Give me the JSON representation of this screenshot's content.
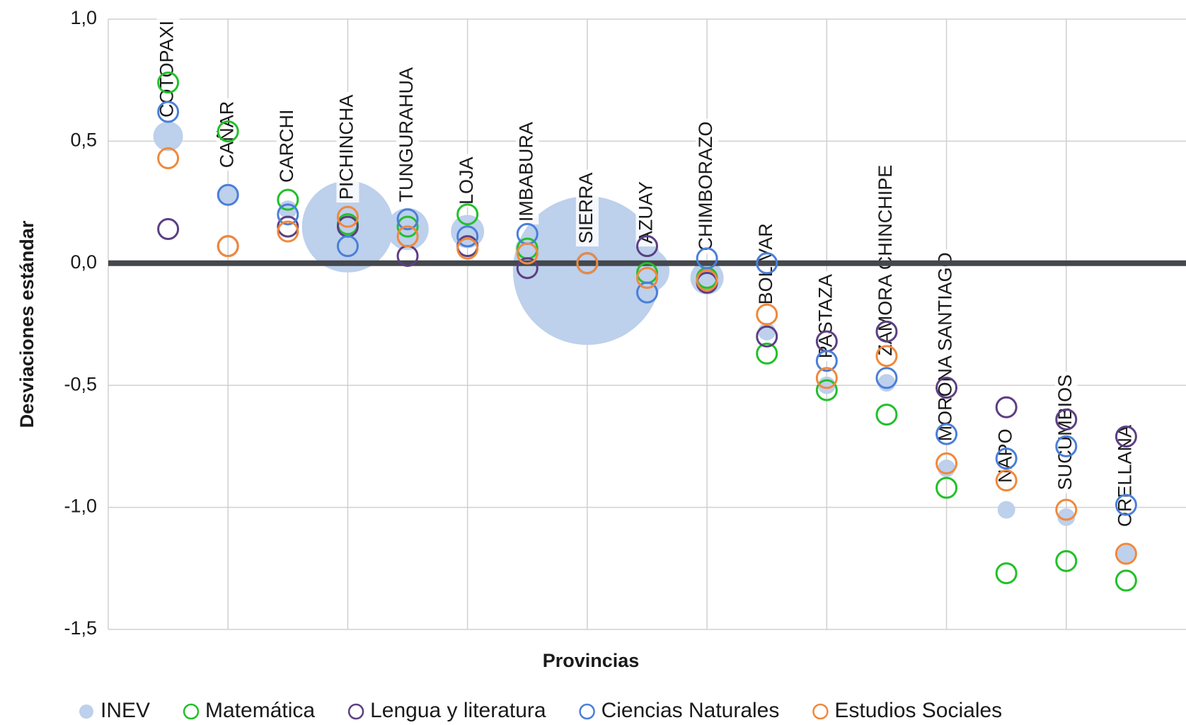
{
  "chart_data": {
    "type": "bubble",
    "x_label": "Provincias",
    "y_label": "Desviaciones estándar",
    "categories": [
      "COTOPAXI",
      "CAÑAR",
      "CARCHI",
      "PICHINCHA",
      "TUNGURAHUA",
      "LOJA",
      "IMBABURA",
      "SIERRA",
      "AZUAY",
      "CHIMBORAZO",
      "BOLIVAR",
      "PASTAZA",
      "ZAMORA CHINCHIPE",
      "MORONA SANTIAGO",
      "NAPO",
      "SUCUMBIOS",
      "ORELLANA"
    ],
    "ylim": [
      -1.5,
      1.0
    ],
    "yticks": [
      {
        "value": 1.0,
        "label": "1,0"
      },
      {
        "value": 0.5,
        "label": "0,5"
      },
      {
        "value": 0,
        "label": "0,0"
      },
      {
        "value": -0.5,
        "label": "-0,5"
      },
      {
        "value": -1.0,
        "label": "-1,0"
      },
      {
        "value": -1.5,
        "label": "-1,5"
      }
    ],
    "grid": true,
    "legend": "bottom",
    "series": [
      {
        "name": "INEV",
        "color": "#bdd0ec",
        "marker": "filled",
        "values": [
          0.52,
          0.28,
          0.22,
          0.15,
          0.14,
          0.13,
          0.06,
          -0.03,
          -0.03,
          -0.06,
          -0.28,
          -0.5,
          -0.49,
          -0.84,
          -1.01,
          -1.04,
          -1.19
        ],
        "sizes": [
          4,
          2,
          1.5,
          38,
          8,
          5,
          2.6,
          100,
          9,
          5,
          1.4,
          1.4,
          1.4,
          1.4,
          1.4,
          1.4,
          1.4
        ]
      },
      {
        "name": "Matemática",
        "color": "#22c02a",
        "marker": "hollow",
        "values": [
          0.74,
          0.54,
          0.26,
          0.16,
          0.15,
          0.2,
          0.06,
          0.0,
          -0.04,
          -0.06,
          -0.37,
          -0.52,
          -0.62,
          -0.92,
          -1.27,
          -1.22,
          -1.3
        ]
      },
      {
        "name": "Lengua y literatura",
        "color": "#5b3f82",
        "marker": "hollow",
        "values": [
          0.14,
          0.07,
          0.15,
          0.15,
          0.03,
          0.07,
          -0.02,
          0.0,
          0.07,
          -0.08,
          -0.3,
          -0.32,
          -0.28,
          -0.51,
          -0.59,
          -0.64,
          -0.71
        ]
      },
      {
        "name": "Ciencias Naturales",
        "color": "#4a7fd8",
        "marker": "hollow",
        "values": [
          0.62,
          0.28,
          0.2,
          0.07,
          0.18,
          0.11,
          0.12,
          0.0,
          -0.12,
          0.02,
          0.0,
          -0.4,
          -0.47,
          -0.7,
          -0.8,
          -0.75,
          -0.99
        ]
      },
      {
        "name": "Estudios Sociales",
        "color": "#f0883c",
        "marker": "hollow",
        "values": [
          0.43,
          0.07,
          0.13,
          0.19,
          0.11,
          0.06,
          0.04,
          0.0,
          -0.06,
          -0.07,
          -0.21,
          -0.47,
          -0.38,
          -0.82,
          -0.89,
          -1.01,
          -1.19
        ]
      }
    ]
  }
}
